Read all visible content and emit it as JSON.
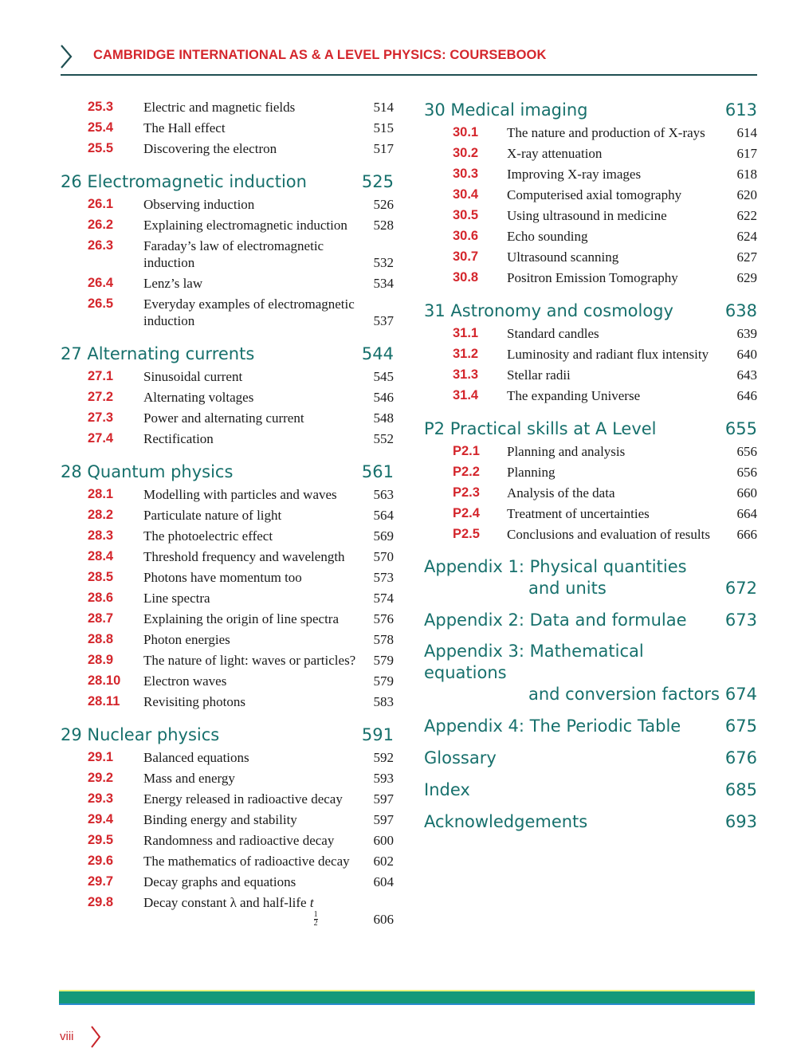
{
  "header": {
    "title": "CAMBRIDGE INTERNATIONAL AS & A LEVEL PHYSICS: COURSEBOOK",
    "icon": "chevron-right-icon"
  },
  "colors": {
    "accent_red": "#d4262c",
    "heading_teal": "#17706c",
    "rule": "#1f4f52",
    "footer_bar": "#15997a"
  },
  "columns": [
    [
      {
        "type": "item",
        "num": "25.3",
        "title": "Electric and magnetic fields",
        "page": "514"
      },
      {
        "type": "item",
        "num": "25.4",
        "title": "The Hall effect",
        "page": "515"
      },
      {
        "type": "item",
        "num": "25.5",
        "title": "Discovering the electron",
        "page": "517"
      },
      {
        "type": "head",
        "title": "26 Electromagnetic induction",
        "page": "525"
      },
      {
        "type": "item",
        "num": "26.1",
        "title": "Observing induction",
        "page": "526"
      },
      {
        "type": "item",
        "num": "26.2",
        "title": "Explaining electromagnetic induction",
        "page": "528"
      },
      {
        "type": "item",
        "num": "26.3",
        "title": "Faraday’s law of electromagnetic induction",
        "page": "532"
      },
      {
        "type": "item",
        "num": "26.4",
        "title": "Lenz’s law",
        "page": "534"
      },
      {
        "type": "item",
        "num": "26.5",
        "title": "Everyday examples of electromagnetic induction",
        "page": "537"
      },
      {
        "type": "head",
        "title": "27 Alternating currents",
        "page": "544"
      },
      {
        "type": "item",
        "num": "27.1",
        "title": "Sinusoidal current",
        "page": "545"
      },
      {
        "type": "item",
        "num": "27.2",
        "title": "Alternating voltages",
        "page": "546"
      },
      {
        "type": "item",
        "num": "27.3",
        "title": "Power and alternating current",
        "page": "548"
      },
      {
        "type": "item",
        "num": "27.4",
        "title": "Rectification",
        "page": "552"
      },
      {
        "type": "head",
        "title": "28 Quantum physics",
        "page": "561"
      },
      {
        "type": "item",
        "num": "28.1",
        "title": "Modelling with particles and waves",
        "page": "563"
      },
      {
        "type": "item",
        "num": "28.2",
        "title": "Particulate nature of light",
        "page": "564"
      },
      {
        "type": "item",
        "num": "28.3",
        "title": "The photoelectric effect",
        "page": "569"
      },
      {
        "type": "item",
        "num": "28.4",
        "title": "Threshold frequency and wavelength",
        "page": "570"
      },
      {
        "type": "item",
        "num": "28.5",
        "title": "Photons have momentum too",
        "page": "573"
      },
      {
        "type": "item",
        "num": "28.6",
        "title": "Line spectra",
        "page": "574"
      },
      {
        "type": "item",
        "num": "28.7",
        "title": "Explaining the origin of line spectra",
        "page": "576"
      },
      {
        "type": "item",
        "num": "28.8",
        "title": "Photon energies",
        "page": "578"
      },
      {
        "type": "item",
        "num": "28.9",
        "title": "The nature of light: waves or particles?",
        "page": "579"
      },
      {
        "type": "item",
        "num": "28.10",
        "title": "Electron waves",
        "page": "579"
      },
      {
        "type": "item",
        "num": "28.11",
        "title": "Revisiting photons",
        "page": "583"
      },
      {
        "type": "head",
        "title": "29 Nuclear physics",
        "page": "591"
      },
      {
        "type": "item",
        "num": "29.1",
        "title": "Balanced equations",
        "page": "592"
      },
      {
        "type": "item",
        "num": "29.2",
        "title": "Mass and energy",
        "page": "593"
      },
      {
        "type": "item",
        "num": "29.3",
        "title": "Energy released in radioactive decay",
        "page": "597"
      },
      {
        "type": "item",
        "num": "29.4",
        "title": "Binding energy and stability",
        "page": "597"
      },
      {
        "type": "item",
        "num": "29.5",
        "title": "Randomness and radioactive decay",
        "page": "600"
      },
      {
        "type": "item",
        "num": "29.6",
        "title": "The mathematics of radioactive decay",
        "page": "602"
      },
      {
        "type": "item",
        "num": "29.7",
        "title": "Decay graphs and equations",
        "page": "604"
      },
      {
        "type": "item",
        "num": "29.8",
        "title": "Decay constant λ and half-life ",
        "var": "t",
        "sub_num": "1",
        "sub_den": "2",
        "page": "606"
      }
    ],
    [
      {
        "type": "head",
        "title": "30 Medical imaging",
        "page": "613"
      },
      {
        "type": "item",
        "num": "30.1",
        "title": "The nature and production of X-rays",
        "page": "614"
      },
      {
        "type": "item",
        "num": "30.2",
        "title": "X-ray attenuation",
        "page": "617"
      },
      {
        "type": "item",
        "num": "30.3",
        "title": "Improving X-ray images",
        "page": "618"
      },
      {
        "type": "item",
        "num": "30.4",
        "title": "Computerised axial tomography",
        "page": "620"
      },
      {
        "type": "item",
        "num": "30.5",
        "title": "Using ultrasound in medicine",
        "page": "622"
      },
      {
        "type": "item",
        "num": "30.6",
        "title": "Echo sounding",
        "page": "624"
      },
      {
        "type": "item",
        "num": "30.7",
        "title": "Ultrasound scanning",
        "page": "627"
      },
      {
        "type": "item",
        "num": "30.8",
        "title": "Positron Emission Tomography",
        "page": "629"
      },
      {
        "type": "head",
        "title": "31 Astronomy and cosmology",
        "page": "638"
      },
      {
        "type": "item",
        "num": "31.1",
        "title": "Standard candles",
        "page": "639"
      },
      {
        "type": "item",
        "num": "31.2",
        "title": "Luminosity and radiant flux intensity",
        "page": "640"
      },
      {
        "type": "item",
        "num": "31.3",
        "title": "Stellar radii",
        "page": "643"
      },
      {
        "type": "item",
        "num": "31.4",
        "title": "The expanding Universe",
        "page": "646"
      },
      {
        "type": "head",
        "title": "P2 Practical skills at A Level",
        "page": "655"
      },
      {
        "type": "item",
        "num": "P2.1",
        "title": "Planning and analysis",
        "page": "656"
      },
      {
        "type": "item",
        "num": "P2.2",
        "title": "Planning",
        "page": "656"
      },
      {
        "type": "item",
        "num": "P2.3",
        "title": "Analysis of the data",
        "page": "660"
      },
      {
        "type": "item",
        "num": "P2.4",
        "title": "Treatment of uncertainties",
        "page": "664"
      },
      {
        "type": "item",
        "num": "P2.5",
        "title": "Conclusions and evaluation of results",
        "page": "666"
      },
      {
        "type": "head",
        "title": "Appendix 1: Physical quantities",
        "title2": "and units",
        "page": "672"
      },
      {
        "type": "head",
        "title": "Appendix 2: Data and formulae",
        "page": "673"
      },
      {
        "type": "head",
        "title": "Appendix 3: Mathematical equations",
        "title2": "and conversion factors",
        "page": "674"
      },
      {
        "type": "head",
        "title": "Appendix 4: The Periodic Table",
        "page": "675"
      },
      {
        "type": "head",
        "title": "Glossary",
        "page": "676"
      },
      {
        "type": "head",
        "title": "Index",
        "page": "685"
      },
      {
        "type": "head",
        "title": "Acknowledgements",
        "page": "693"
      }
    ]
  ],
  "footer": {
    "folio": "viii",
    "icon": "chevron-right-icon"
  }
}
